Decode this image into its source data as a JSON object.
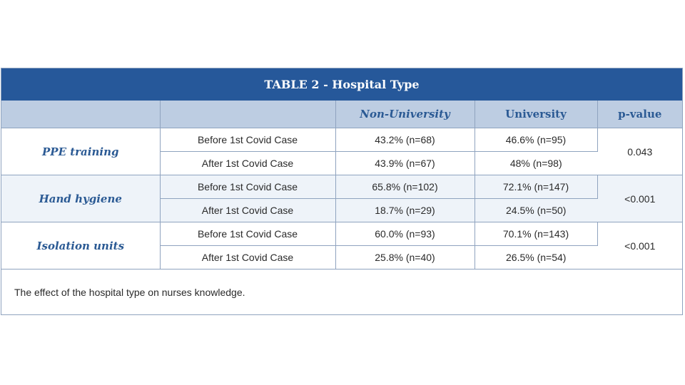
{
  "table": {
    "title": "TABLE 2 - Hospital Type",
    "headers": [
      "",
      "",
      "Non-University",
      "University",
      "p-value"
    ],
    "groups": [
      {
        "category": "PPE training",
        "p_value": "0.043",
        "rows": [
          {
            "timing": "Before 1st Covid Case",
            "non_university": "43.2% (n=68)",
            "university": "46.6% (n=95)"
          },
          {
            "timing": "After 1st Covid Case",
            "non_university": "43.9% (n=67)",
            "university": "48% (n=98)"
          }
        ]
      },
      {
        "category": "Hand hygiene",
        "p_value": "<0.001",
        "rows": [
          {
            "timing": "Before 1st Covid Case",
            "non_university": "65.8% (n=102)",
            "university": "72.1% (n=147)"
          },
          {
            "timing": "After 1st Covid Case",
            "non_university": "18.7% (n=29)",
            "university": "24.5% (n=50)"
          }
        ]
      },
      {
        "category": "Isolation units",
        "p_value": "<0.001",
        "rows": [
          {
            "timing": "Before 1st Covid Case",
            "non_university": "60.0% (n=93)",
            "university": "70.1% (n=143)"
          },
          {
            "timing": "After 1st Covid Case",
            "non_university": "25.8% (n=40)",
            "university": "26.5% (n=54)"
          }
        ]
      }
    ],
    "caption": "The effect of the hospital type on nurses knowledge."
  },
  "colors": {
    "title_bar": "#26589a",
    "header_row": "#bdcde2",
    "accent_text": "#2b5a94",
    "shaded_row": "#eef3f9"
  }
}
